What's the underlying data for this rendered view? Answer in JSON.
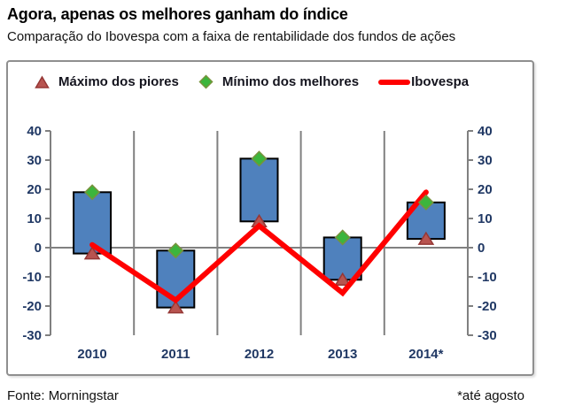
{
  "header": {
    "title": "Agora, apenas os melhores ganham do índice",
    "subtitle": "Comparação do Ibovespa com a faixa de rentabilidade dos fundos de ações"
  },
  "legend": {
    "items": [
      {
        "label": "Máximo dos piores",
        "marker": "triangle",
        "fill": "#B85450",
        "stroke": "#953735"
      },
      {
        "label": "Mínimo dos melhores",
        "marker": "diamond",
        "fill": "#3CB53C",
        "stroke": "#77933C"
      },
      {
        "label": "Ibovespa",
        "marker": "line",
        "fill": "#FF0000",
        "stroke": "#FF0000"
      }
    ]
  },
  "footer": {
    "source": "Fonte: Morningstar",
    "note": "*até agosto"
  },
  "colors": {
    "bar_fill": "#4F81BD",
    "bar_border": "#000000",
    "diamond_fill": "#3CB53C",
    "diamond_stroke": "#77933C",
    "triangle_fill": "#B85450",
    "triangle_stroke": "#953735",
    "line": "#FF0000",
    "axis": "#808080",
    "axis_text": "#203864"
  },
  "chart_data": {
    "type": "bar",
    "subtype": "floating-range-columns-with-line-and-markers",
    "title": "Agora, apenas os melhores ganham do índice",
    "xlabel": "",
    "ylabel": "",
    "categories": [
      "2010",
      "2011",
      "2012",
      "2013",
      "2014*"
    ],
    "range_bars": {
      "name": "Faixa de rentabilidade dos fundos de ações",
      "low": [
        -2,
        -20.5,
        9,
        -11,
        3
      ],
      "high": [
        19,
        -1,
        30.5,
        3.5,
        15.5
      ]
    },
    "series": [
      {
        "name": "Máximo dos piores",
        "type": "scatter",
        "marker": "triangle",
        "values": [
          -2,
          -20.5,
          9,
          -11,
          3
        ]
      },
      {
        "name": "Mínimo dos melhores",
        "type": "scatter",
        "marker": "diamond",
        "values": [
          19,
          -1,
          30.5,
          3.5,
          15.5
        ]
      },
      {
        "name": "Ibovespa",
        "type": "line",
        "values": [
          1,
          -18,
          7.5,
          -15.5,
          19
        ]
      }
    ],
    "ylim": [
      -30,
      40
    ],
    "yticks": [
      40,
      30,
      20,
      10,
      0,
      -10,
      -20,
      -30
    ],
    "y_axis_sides": "both",
    "grid": "vertical-category-boundaries-only",
    "zero_line": true,
    "legend_position": "top"
  }
}
